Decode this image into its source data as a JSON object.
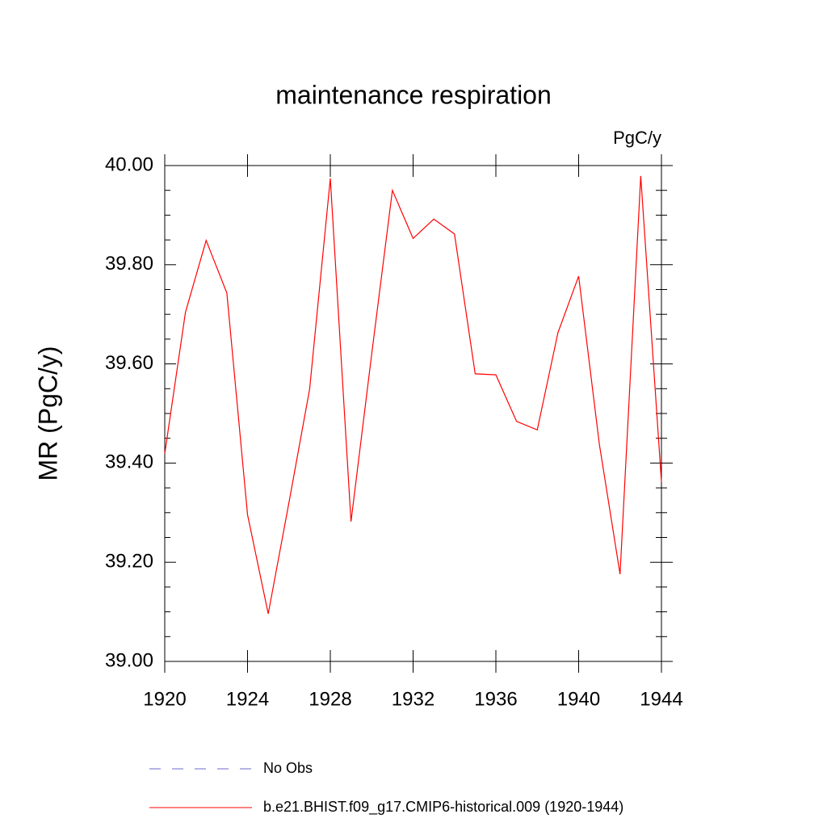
{
  "chart_data": {
    "type": "line",
    "title": "maintenance respiration",
    "units_label": "PgC/y",
    "ylabel": "MR  (PgC/y)",
    "x": [
      1920,
      1921,
      1922,
      1923,
      1924,
      1925,
      1926,
      1927,
      1928,
      1929,
      1930,
      1931,
      1932,
      1933,
      1934,
      1935,
      1936,
      1937,
      1938,
      1939,
      1940,
      1941,
      1942,
      1943,
      1944
    ],
    "series": [
      {
        "name": "b.e21.BHIST.f09_g17.CMIP6-historical.009 (1920-1944)",
        "color": "#ff0000",
        "values": [
          39.419,
          39.704,
          39.849,
          39.743,
          39.296,
          39.096,
          39.32,
          39.549,
          39.974,
          39.282,
          39.62,
          39.95,
          39.853,
          39.892,
          39.862,
          39.58,
          39.578,
          39.484,
          39.467,
          39.663,
          39.777,
          39.438,
          39.176,
          39.979,
          39.362
        ]
      }
    ],
    "legend_extra": [
      {
        "name": "No Obs",
        "color": "#6a6acd",
        "dashed": true
      }
    ],
    "xlim": [
      1920,
      1944
    ],
    "xticks": [
      1920,
      1924,
      1928,
      1932,
      1936,
      1940,
      1944
    ],
    "ylim": [
      39,
      40
    ],
    "yticks": [
      {
        "value": 39,
        "label": "39.00"
      },
      {
        "value": 39.2,
        "label": "39.20"
      },
      {
        "value": 39.4,
        "label": "39.40"
      },
      {
        "value": 39.6,
        "label": "39.60"
      },
      {
        "value": 39.8,
        "label": "39.80"
      },
      {
        "value": 40,
        "label": "40.00"
      }
    ]
  }
}
